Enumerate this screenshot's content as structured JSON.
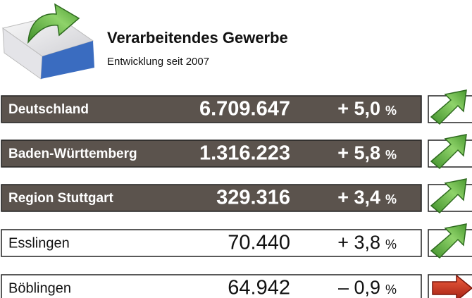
{
  "header": {
    "title": "Verarbeitendes Gewerbe",
    "subtitle": "Entwicklung seit 2007"
  },
  "table": {
    "rows": [
      {
        "name": "Deutschland",
        "value": "6.709.647",
        "change": "+ 5,0",
        "unit": "%"
      },
      {
        "name": "Baden-Württemberg",
        "value": "1.316.223",
        "change": "+ 5,8",
        "unit": "%"
      },
      {
        "name": "Region Stuttgart",
        "value": "329.316",
        "change": "+ 3,4",
        "unit": "%"
      },
      {
        "name": "Esslingen",
        "value": "70.440",
        "change": "+ 3,8",
        "unit": "%"
      },
      {
        "name": "Böblingen",
        "value": "64.942",
        "change": "– 0,9",
        "unit": "%"
      }
    ]
  }
}
